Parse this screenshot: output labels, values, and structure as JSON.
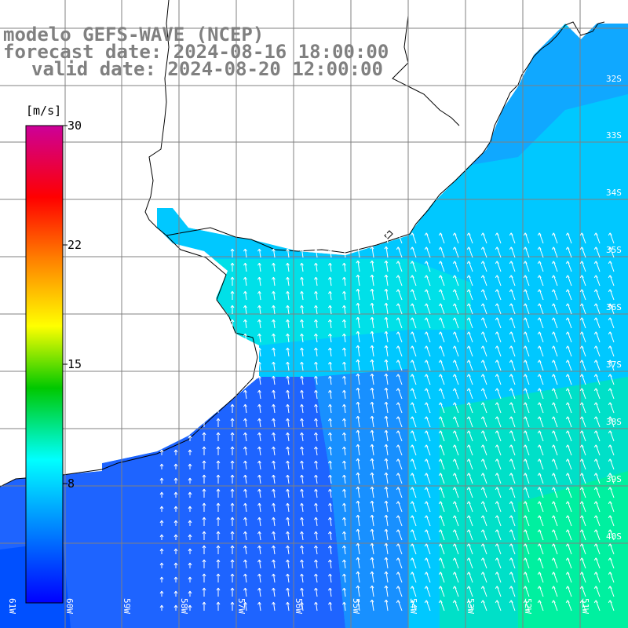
{
  "title": {
    "line1": "modelo GEFS-WAVE (NCEP)",
    "line2": "forecast date: 2024-08-16 18:00:00",
    "line3": "valid date: 2024-08-20 12:00:00"
  },
  "colorbar": {
    "unit": "[m/s]",
    "ticks": [
      {
        "value": 30,
        "label": "30"
      },
      {
        "value": 22,
        "label": "22"
      },
      {
        "value": 15,
        "label": "15"
      },
      {
        "value": 8,
        "label": "8"
      }
    ],
    "colors": [
      "#0000ff",
      "#0099ff",
      "#00ffff",
      "#00e060",
      "#00c800",
      "#ffff00",
      "#ff8000",
      "#ff0000",
      "#cc0099"
    ]
  },
  "map": {
    "lon_labels": [
      "61W",
      "60W",
      "59W",
      "58W",
      "57W",
      "56W",
      "55W",
      "54W",
      "53W",
      "52W",
      "51W"
    ],
    "lat_labels": [
      "32S",
      "33S",
      "34S",
      "35S",
      "36S",
      "37S",
      "38S",
      "39S",
      "40S"
    ],
    "land_color": "#ffffff",
    "grid_color": "#808080",
    "wind_direction": "from south / south-west (arrows pointing north)"
  }
}
